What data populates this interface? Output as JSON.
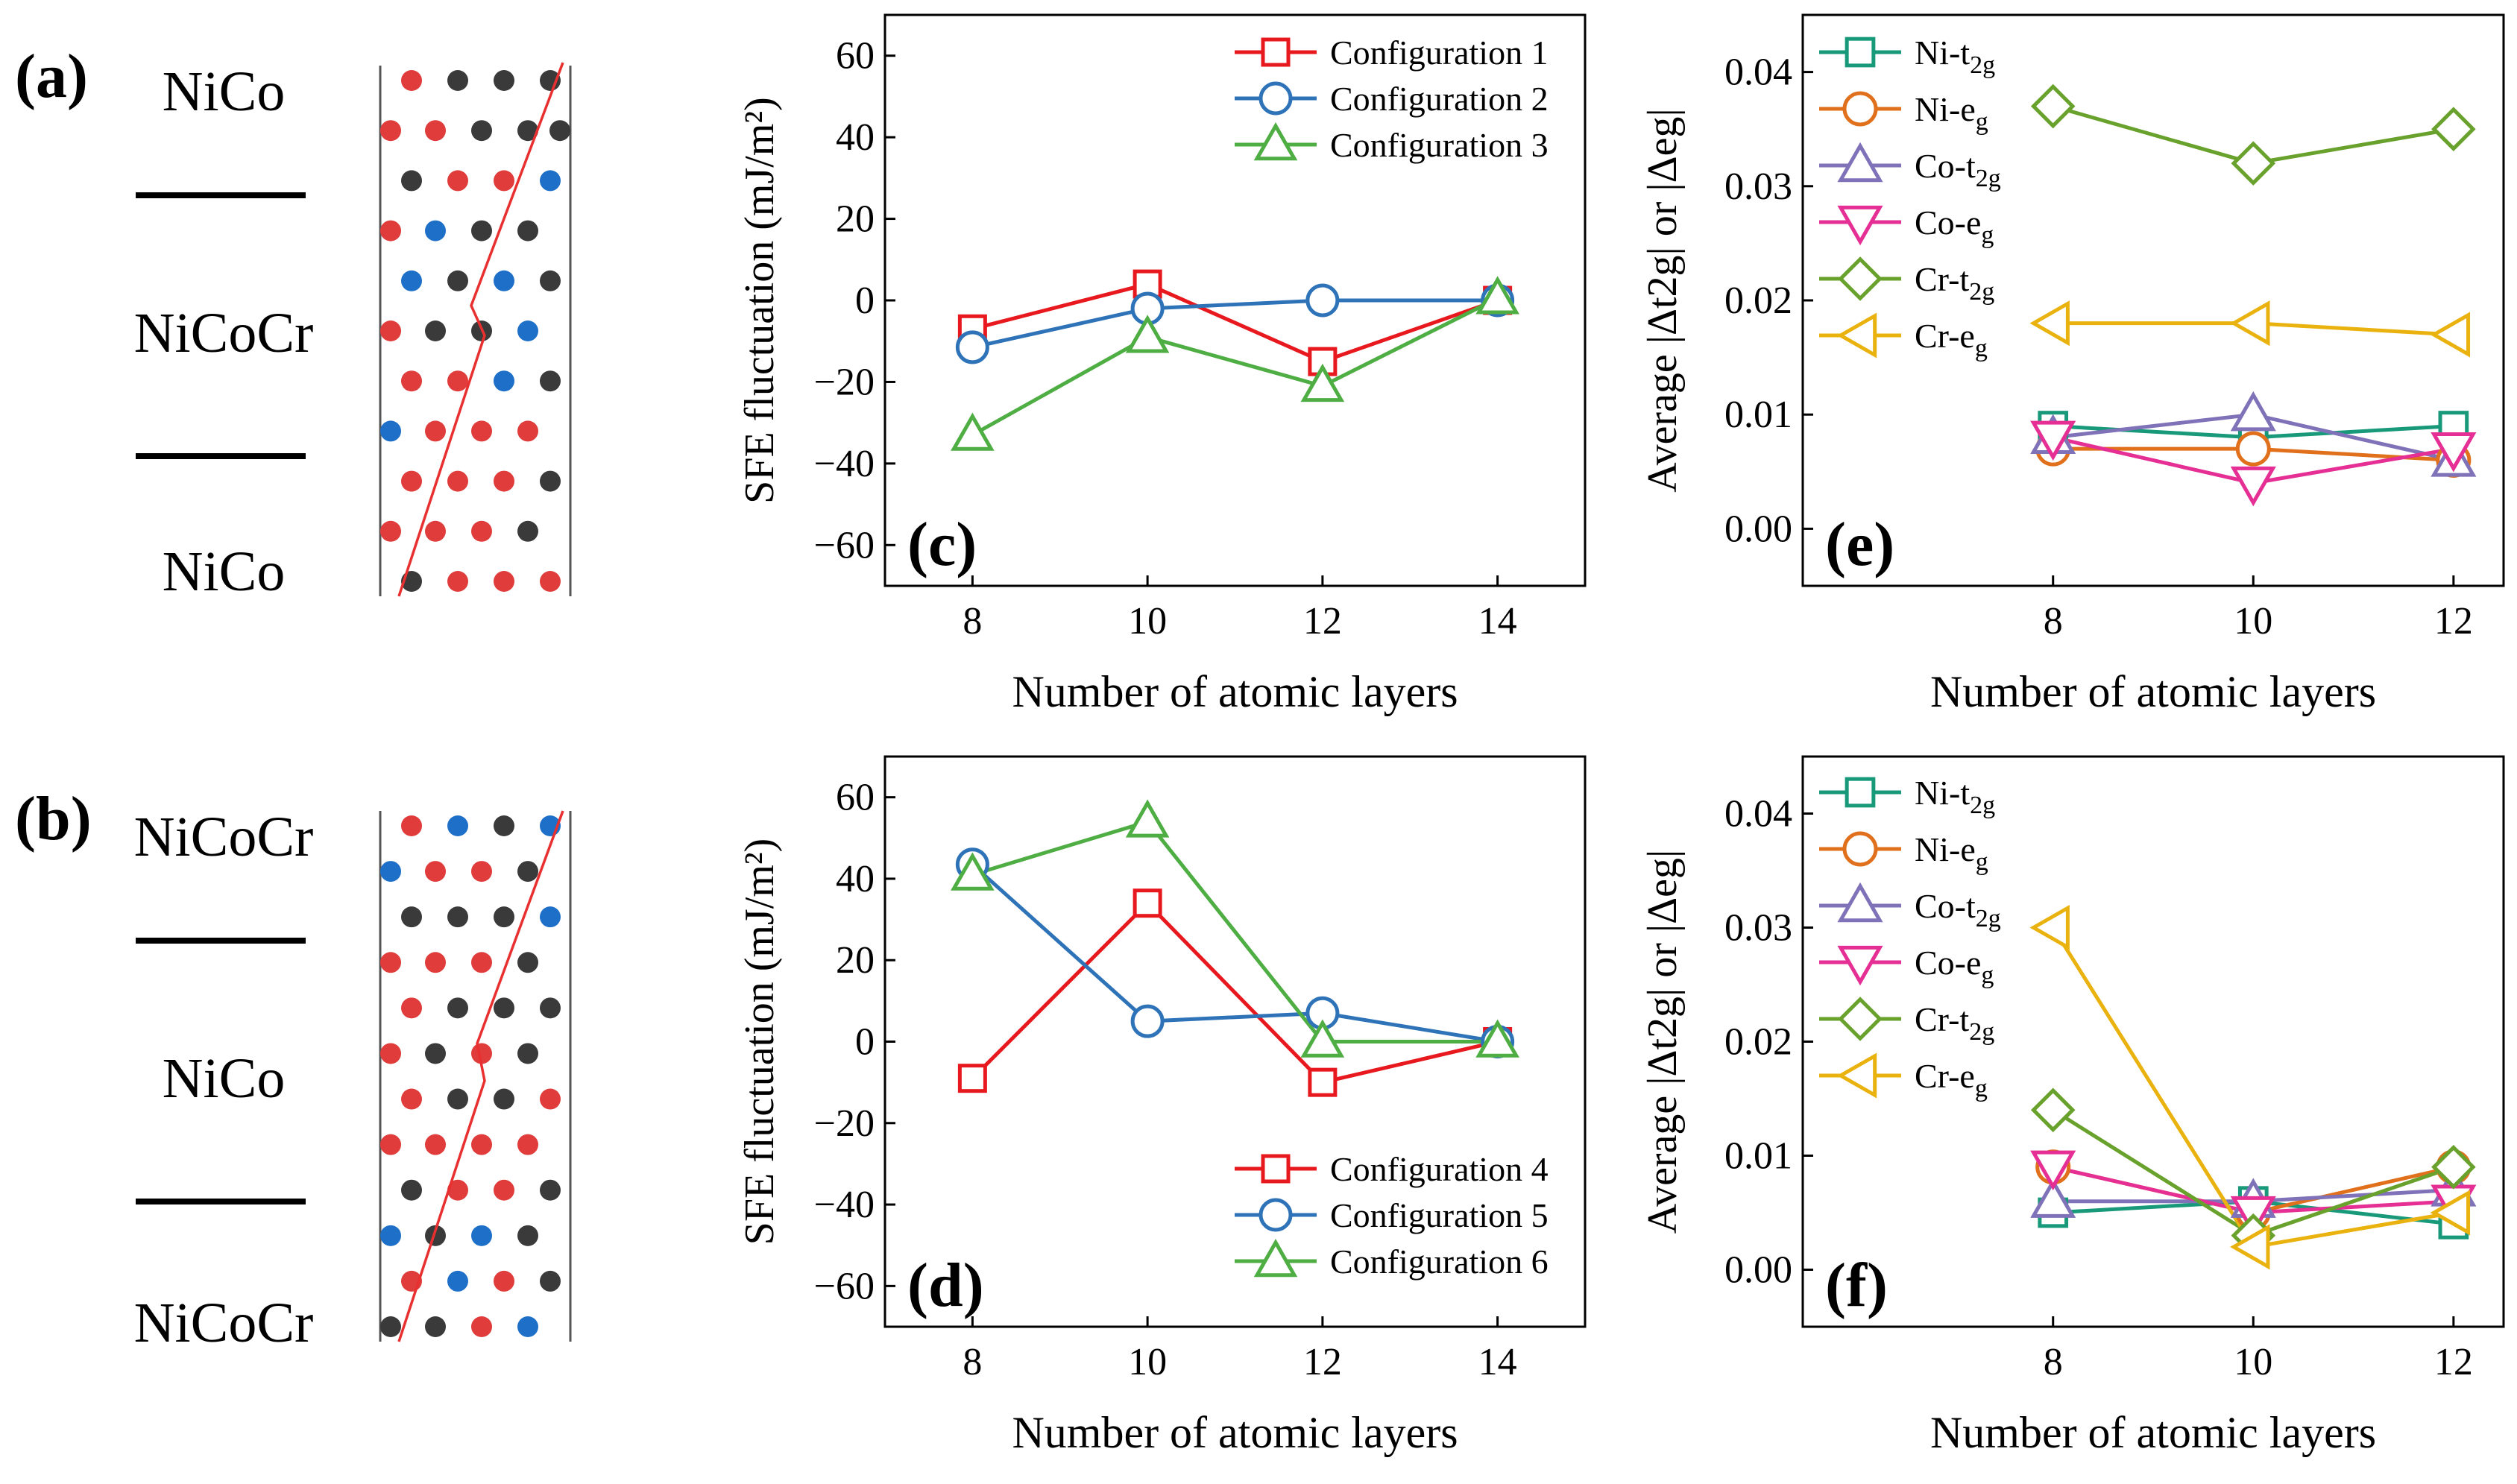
{
  "colors": {
    "red": "#e8191e",
    "blue": "#2e73b8",
    "green": "#4fae43",
    "teal": "#17997a",
    "orange": "#e0701b",
    "purple": "#7f72b8",
    "magenta": "#e52f94",
    "olive": "#68a12b",
    "gold": "#eab20e",
    "atom_red": "#e03c3c",
    "atom_blue": "#1e6fc8",
    "atom_black": "#3a3a3a"
  },
  "panel_a": {
    "label": "(a)",
    "top": "NiCo",
    "middle": "NiCoCr",
    "bottom": "NiCo"
  },
  "panel_b": {
    "label": "(b)",
    "top": "NiCoCr",
    "middle": "NiCo",
    "bottom": "NiCoCr"
  },
  "structures": {
    "a": [
      "rkkk",
      "rrkkk",
      "krrb",
      "rbkk",
      "bkbk",
      "rkkb",
      "rrbk",
      "brrr",
      "rrrk",
      "rrrk",
      "krrr"
    ],
    "b": [
      "rbkb",
      "brrk",
      "kkkb",
      "rrrk",
      "rkkk",
      "rkrk",
      "rkkr",
      "rrrr",
      "krrk",
      "bkbk",
      "rbrk",
      "kkrb"
    ]
  },
  "chart_data": [
    {
      "id": "c",
      "type": "line",
      "panel_label": "(c)",
      "xlabel": "Number of atomic layers",
      "ylabel": "SFE fluctuation (mJ/m²)",
      "xlim": [
        7,
        15
      ],
      "ylim": [
        -70,
        70
      ],
      "x_ticks": [
        8,
        10,
        12,
        14
      ],
      "y_ticks": [
        -60,
        -40,
        -20,
        0,
        20,
        40,
        60
      ],
      "y_tick_labels": [
        "−60",
        "−40",
        "−20",
        "0",
        "20",
        "40",
        "60"
      ],
      "legend_position": "top-right",
      "series": [
        {
          "name": "Configuration 1",
          "color": "red",
          "marker": "square",
          "x": [
            8,
            10,
            12,
            14
          ],
          "values": [
            -7,
            4,
            -15,
            0
          ]
        },
        {
          "name": "Configuration 2",
          "color": "blue",
          "marker": "circle",
          "x": [
            8,
            10,
            12,
            14
          ],
          "values": [
            -11.5,
            -2,
            0,
            0
          ]
        },
        {
          "name": "Configuration 3",
          "color": "green",
          "marker": "triangle-up",
          "x": [
            8,
            10,
            12,
            14
          ],
          "values": [
            -33,
            -9,
            -21,
            0.5
          ]
        }
      ]
    },
    {
      "id": "d",
      "type": "line",
      "panel_label": "(d)",
      "xlabel": "Number of atomic layers",
      "ylabel": "SFE fluctuation (mJ/m²)",
      "xlim": [
        7,
        15
      ],
      "ylim": [
        -70,
        70
      ],
      "x_ticks": [
        8,
        10,
        12,
        14
      ],
      "y_ticks": [
        -60,
        -40,
        -20,
        0,
        20,
        40,
        60
      ],
      "y_tick_labels": [
        "−60",
        "−40",
        "−20",
        "0",
        "20",
        "40",
        "60"
      ],
      "legend_position": "bottom-right",
      "series": [
        {
          "name": "Configuration 4",
          "color": "red",
          "marker": "square",
          "x": [
            8,
            10,
            12,
            14
          ],
          "values": [
            -9,
            34,
            -10,
            0
          ]
        },
        {
          "name": "Configuration 5",
          "color": "blue",
          "marker": "circle",
          "x": [
            8,
            10,
            12,
            14
          ],
          "values": [
            43.5,
            5,
            7,
            0
          ]
        },
        {
          "name": "Configuration 6",
          "color": "green",
          "marker": "triangle-up",
          "x": [
            8,
            10,
            12,
            14
          ],
          "values": [
            41,
            54,
            0,
            0
          ]
        }
      ]
    },
    {
      "id": "e",
      "type": "line",
      "panel_label": "(e)",
      "xlabel": "Number of atomic layers",
      "ylabel": "Average |Δt2g| or |Δeg|",
      "xlim": [
        5.5,
        12.5
      ],
      "ylim": [
        -0.005,
        0.045
      ],
      "x_ticks": [
        8,
        10,
        12
      ],
      "y_ticks": [
        0.0,
        0.01,
        0.02,
        0.03,
        0.04
      ],
      "y_tick_labels": [
        "0.00",
        "0.01",
        "0.02",
        "0.03",
        "0.04"
      ],
      "legend_position": "top-left",
      "series": [
        {
          "name": "Ni-t2g",
          "color": "teal",
          "marker": "square",
          "x": [
            8,
            10,
            12
          ],
          "values": [
            0.009,
            0.008,
            0.009
          ]
        },
        {
          "name": "Ni-eg",
          "color": "orange",
          "marker": "circle",
          "x": [
            8,
            10,
            12
          ],
          "values": [
            0.007,
            0.007,
            0.006
          ]
        },
        {
          "name": "Co-t2g",
          "color": "purple",
          "marker": "triangle-up",
          "x": [
            8,
            10,
            12
          ],
          "values": [
            0.008,
            0.01,
            0.006
          ]
        },
        {
          "name": "Co-eg",
          "color": "magenta",
          "marker": "triangle-down",
          "x": [
            8,
            10,
            12
          ],
          "values": [
            0.008,
            0.004,
            0.007
          ]
        },
        {
          "name": "Cr-t2g",
          "color": "olive",
          "marker": "diamond",
          "x": [
            8,
            10,
            12
          ],
          "values": [
            0.037,
            0.032,
            0.035
          ]
        },
        {
          "name": "Cr-eg",
          "color": "gold",
          "marker": "triangle-left",
          "x": [
            8,
            10,
            12
          ],
          "values": [
            0.018,
            0.018,
            0.017
          ]
        }
      ]
    },
    {
      "id": "f",
      "type": "line",
      "panel_label": "(f)",
      "xlabel": "Number of atomic layers",
      "ylabel": "Average |Δt2g| or |Δeg|",
      "xlim": [
        5.5,
        12.5
      ],
      "ylim": [
        -0.005,
        0.045
      ],
      "x_ticks": [
        8,
        10,
        12
      ],
      "y_ticks": [
        0.0,
        0.01,
        0.02,
        0.03,
        0.04
      ],
      "y_tick_labels": [
        "0.00",
        "0.01",
        "0.02",
        "0.03",
        "0.04"
      ],
      "legend_position": "top-left",
      "series": [
        {
          "name": "Ni-t2g",
          "color": "teal",
          "marker": "square",
          "x": [
            8,
            10,
            12
          ],
          "values": [
            0.005,
            0.006,
            0.004
          ]
        },
        {
          "name": "Ni-eg",
          "color": "orange",
          "marker": "circle",
          "x": [
            8,
            10,
            12
          ],
          "values": [
            0.009,
            0.005,
            0.009
          ]
        },
        {
          "name": "Co-t2g",
          "color": "purple",
          "marker": "triangle-up",
          "x": [
            8,
            10,
            12
          ],
          "values": [
            0.006,
            0.006,
            0.007
          ]
        },
        {
          "name": "Co-eg",
          "color": "magenta",
          "marker": "triangle-down",
          "x": [
            8,
            10,
            12
          ],
          "values": [
            0.009,
            0.005,
            0.006
          ]
        },
        {
          "name": "Cr-t2g",
          "color": "olive",
          "marker": "diamond",
          "x": [
            8,
            10,
            12
          ],
          "values": [
            0.014,
            0.003,
            0.009
          ]
        },
        {
          "name": "Cr-eg",
          "color": "gold",
          "marker": "triangle-left",
          "x": [
            8,
            10,
            12
          ],
          "values": [
            0.03,
            0.002,
            0.005
          ]
        }
      ]
    }
  ]
}
